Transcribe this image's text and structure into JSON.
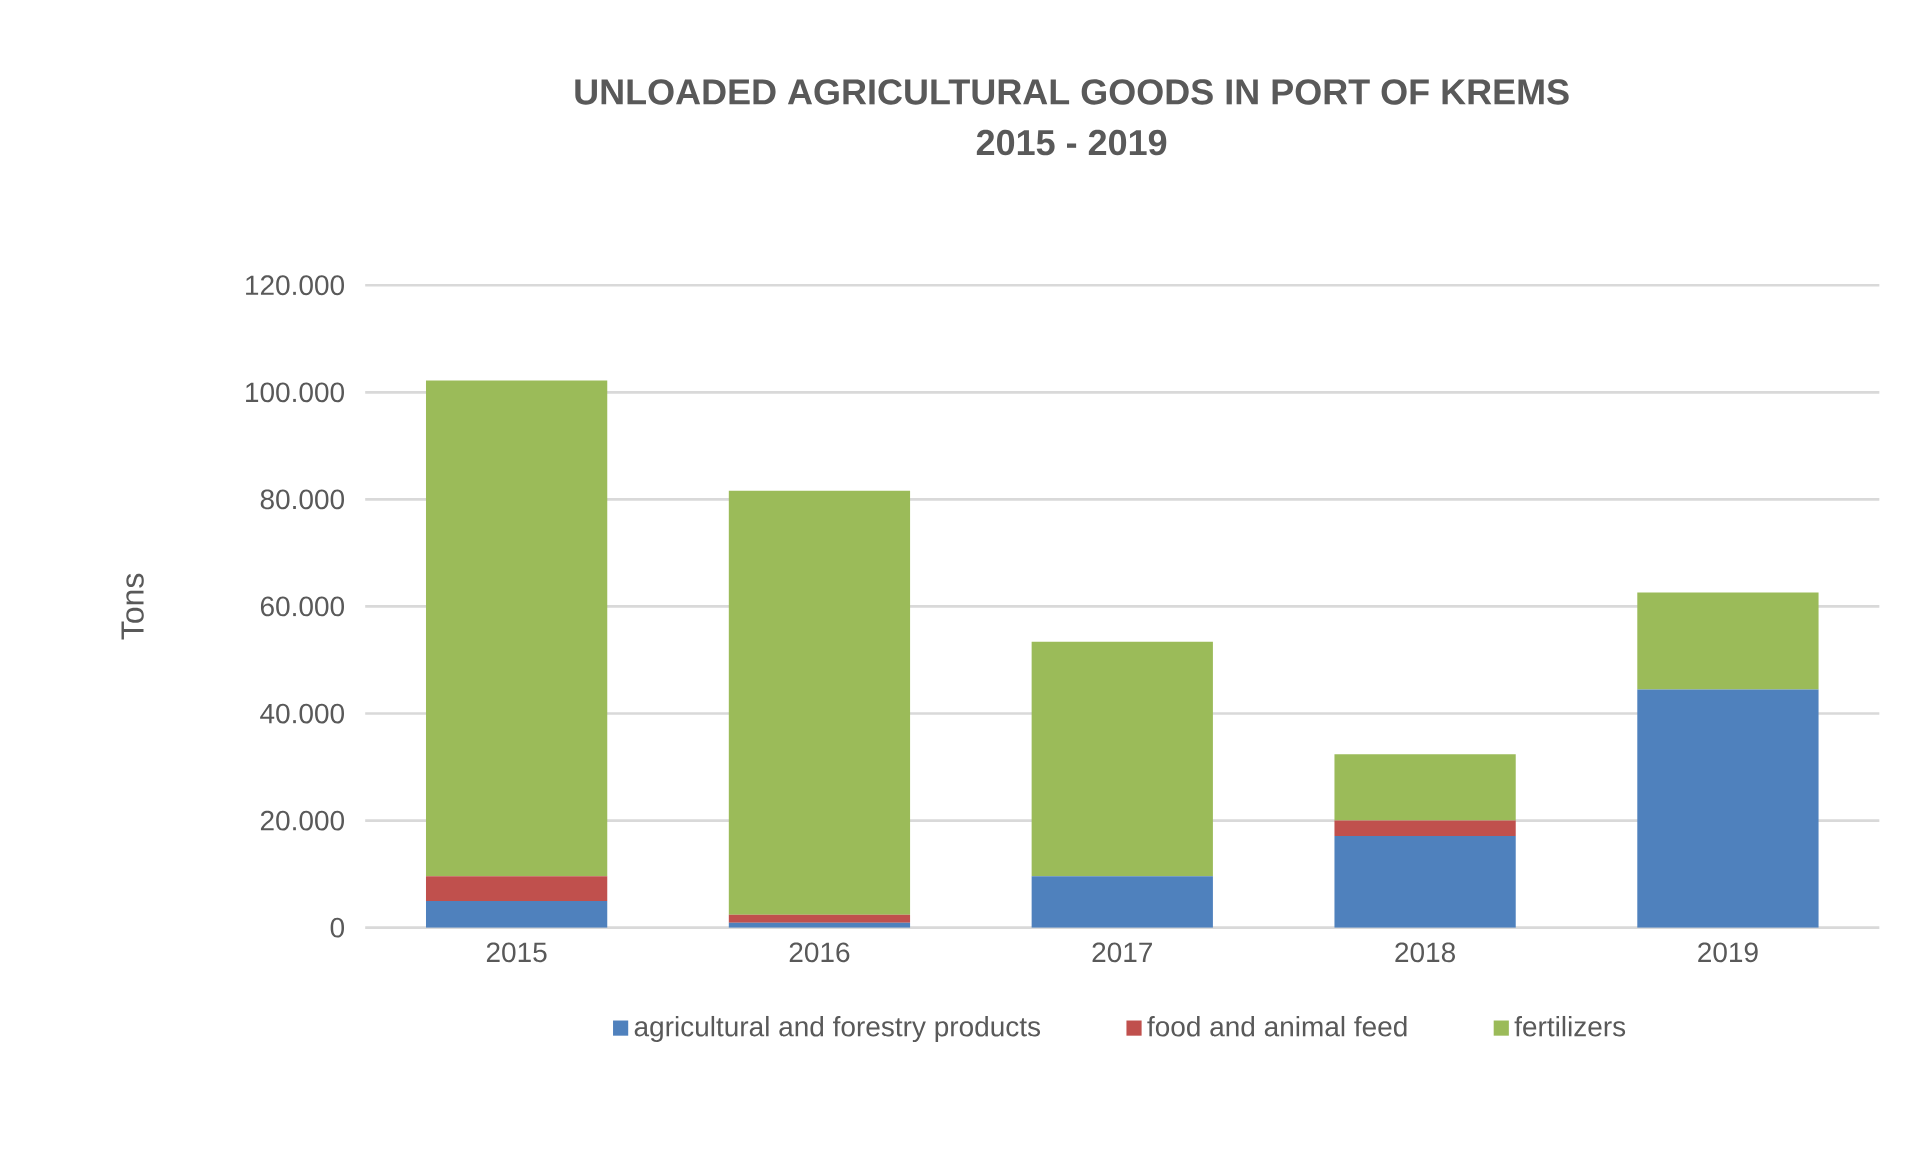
{
  "chart_data": {
    "type": "bar",
    "stacked": true,
    "title": "UNLOADED AGRICULTURAL GOODS IN PORT OF KREMS",
    "subtitle": "2015 - 2019",
    "ylabel": "Tons",
    "categories": [
      "2015",
      "2016",
      "2017",
      "2018",
      "2019"
    ],
    "series": [
      {
        "name": "agricultural and forestry products",
        "color": "#4f81bd",
        "values": [
          5000,
          900,
          9600,
          17100,
          44500
        ]
      },
      {
        "name": "food and animal feed",
        "color": "#c0504d",
        "values": [
          4600,
          1500,
          0,
          2900,
          0
        ]
      },
      {
        "name": "fertilizers",
        "color": "#9bbb59",
        "values": [
          92600,
          79200,
          43800,
          12400,
          18100
        ]
      }
    ],
    "ylim": [
      0,
      120000
    ],
    "yticks": [
      {
        "value": 0,
        "label": "0"
      },
      {
        "value": 20000,
        "label": "20.000"
      },
      {
        "value": 40000,
        "label": "40.000"
      },
      {
        "value": 60000,
        "label": "60.000"
      },
      {
        "value": 80000,
        "label": "80.000"
      },
      {
        "value": 100000,
        "label": "100.000"
      },
      {
        "value": 120000,
        "label": "120.000"
      }
    ],
    "grid": "y",
    "legend": "bottom"
  }
}
